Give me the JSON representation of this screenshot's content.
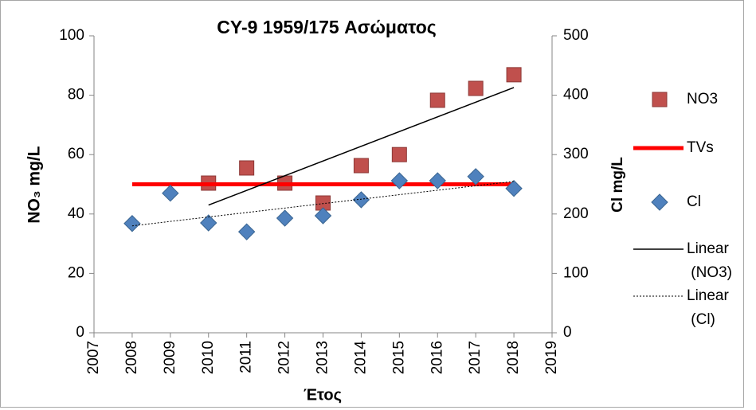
{
  "chart_data": {
    "type": "scatter",
    "title": "CY-9 1959/175 Ασώματος",
    "xlabel": "Έτος",
    "ylabel": "NO₃ mg/L",
    "y2label": "Cl mg/L",
    "xlim": [
      2007,
      2019
    ],
    "xticks": [
      2007,
      2008,
      2009,
      2010,
      2011,
      2012,
      2013,
      2014,
      2015,
      2016,
      2017,
      2018,
      2019
    ],
    "ylim": [
      0,
      100
    ],
    "yticks": [
      0,
      20,
      40,
      60,
      80,
      100
    ],
    "y2lim": [
      0,
      500
    ],
    "y2ticks": [
      0,
      100,
      200,
      300,
      400,
      500
    ],
    "legend": "right",
    "series": [
      {
        "name": "NO3",
        "color": "#c0504d",
        "marker": "square",
        "x": [
          2010,
          2011,
          2012,
          2013,
          2014,
          2015,
          2016,
          2017,
          2018
        ],
        "values": [
          50.4,
          55.5,
          50.4,
          43.7,
          56.3,
          60,
          78.3,
          82.3,
          86.9
        ]
      },
      {
        "name": "TVs",
        "color": "#ff0000",
        "line": "solid",
        "width": 5,
        "x": [
          2008,
          2018
        ],
        "values": [
          50,
          50
        ]
      },
      {
        "name": "Cl",
        "color": "#4f81bd",
        "marker": "diamond",
        "axis": "y2",
        "x": [
          2008,
          2009,
          2010,
          2011,
          2012,
          2013,
          2014,
          2015,
          2016,
          2017,
          2018
        ],
        "values": [
          184,
          235,
          185,
          170,
          193,
          197,
          224,
          256,
          256,
          263,
          243
        ]
      },
      {
        "name": "Linear (NO3)",
        "color": "#000000",
        "line": "solid",
        "width": 1.5,
        "x": [
          2010,
          2018
        ],
        "values": [
          43,
          82.6
        ]
      },
      {
        "name": "Linear (Cl)",
        "color": "#000000",
        "line": "dotted",
        "width": 1,
        "axis": "y2",
        "x": [
          2008,
          2018
        ],
        "values": [
          180,
          255
        ]
      }
    ]
  }
}
